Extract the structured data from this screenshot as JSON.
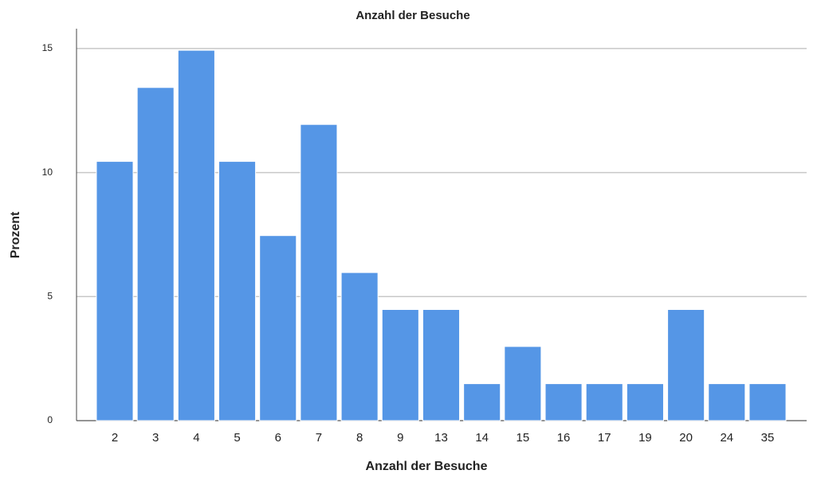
{
  "chart_data": {
    "type": "bar",
    "title": "Anzahl der Besuche",
    "x_label": "Anzahl der Besuche",
    "y_label": "Prozent",
    "categories": [
      "2",
      "3",
      "4",
      "5",
      "6",
      "7",
      "8",
      "9",
      "13",
      "14",
      "15",
      "16",
      "17",
      "19",
      "20",
      "24",
      "35"
    ],
    "values": [
      10.45,
      13.43,
      14.93,
      10.45,
      7.46,
      11.94,
      5.97,
      4.48,
      4.48,
      1.49,
      2.99,
      1.49,
      1.49,
      1.49,
      4.48,
      1.49,
      1.49
    ],
    "color": "#5596e6",
    "ylim": [
      0,
      15.8
    ],
    "yticks": [
      0,
      5,
      10,
      15
    ],
    "grid": true
  }
}
